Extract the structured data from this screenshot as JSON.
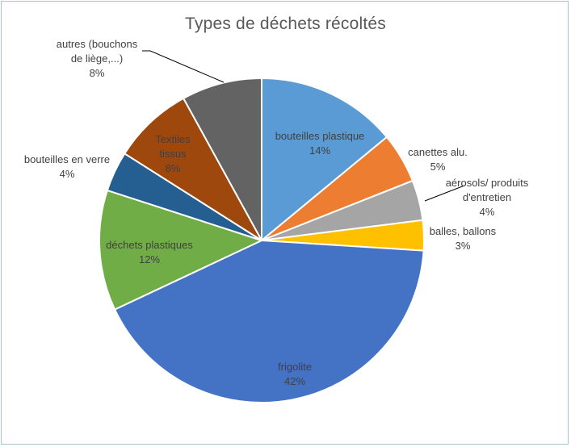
{
  "chart_data": {
    "type": "pie",
    "title": "Types de déchets récoltés",
    "start_angle_deg": 0,
    "direction": "clockwise",
    "slices": [
      {
        "label_lines": [
          "bouteilles plastique"
        ],
        "pct_label": "14%",
        "value": 14,
        "color": "#5b9bd5"
      },
      {
        "label_lines": [
          "canettes alu."
        ],
        "pct_label": "5%",
        "value": 5,
        "color": "#ed7d31"
      },
      {
        "label_lines": [
          "aérosols/ produits",
          "d'entretien"
        ],
        "pct_label": "4%",
        "value": 4,
        "color": "#a5a5a5"
      },
      {
        "label_lines": [
          "balles, ballons"
        ],
        "pct_label": "3%",
        "value": 3,
        "color": "#ffc000"
      },
      {
        "label_lines": [
          "frigolite"
        ],
        "pct_label": "42%",
        "value": 42,
        "color": "#4472c4"
      },
      {
        "label_lines": [
          "déchets plastiques"
        ],
        "pct_label": "12%",
        "value": 12,
        "color": "#70ad47"
      },
      {
        "label_lines": [
          "bouteilles en verre"
        ],
        "pct_label": "4%",
        "value": 4,
        "color": "#255e91"
      },
      {
        "label_lines": [
          "Textiles",
          "tissus"
        ],
        "pct_label": "8%",
        "value": 8,
        "color": "#9e480e"
      },
      {
        "label_lines": [
          "autres (bouchons",
          "de liège,...)"
        ],
        "pct_label": "8%",
        "value": 8,
        "color": "#636363"
      }
    ]
  }
}
